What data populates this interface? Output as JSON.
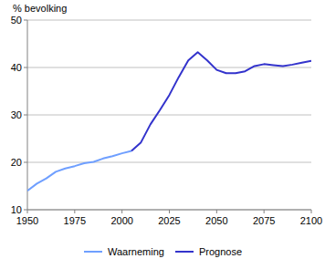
{
  "chart_data": {
    "type": "line",
    "y_label": "% bevolking",
    "x": [
      1950,
      1955,
      1960,
      1965,
      1970,
      1975,
      1980,
      1985,
      1990,
      1995,
      2000,
      2005,
      2010,
      2015,
      2020,
      2025,
      2030,
      2035,
      2040,
      2045,
      2050,
      2055,
      2060,
      2065,
      2070,
      2075,
      2080,
      2085,
      2090,
      2095,
      2100
    ],
    "series": [
      {
        "name": "Waarneming",
        "color": "#6f9fff",
        "values": [
          14,
          15.5,
          16.6,
          18,
          18.7,
          19.2,
          19.8,
          20.1,
          20.8,
          21.3,
          21.9,
          22.4,
          null,
          null,
          null,
          null,
          null,
          null,
          null,
          null,
          null,
          null,
          null,
          null,
          null,
          null,
          null,
          null,
          null,
          null,
          null
        ]
      },
      {
        "name": "Prognose",
        "color": "#3333cc",
        "values": [
          null,
          null,
          null,
          null,
          null,
          null,
          null,
          null,
          null,
          null,
          null,
          22.4,
          24.2,
          28,
          31,
          34.2,
          38,
          41.5,
          43.2,
          41.5,
          39.5,
          38.8,
          38.8,
          39.2,
          40.3,
          40.7,
          40.5,
          40.3,
          40.6,
          41,
          41.4
        ]
      }
    ],
    "xlim": [
      1950,
      2100
    ],
    "ylim": [
      10,
      50
    ],
    "xticks": [
      1950,
      1975,
      2000,
      2025,
      2050,
      2075,
      2100
    ],
    "yticks": [
      10,
      20,
      30,
      40,
      50
    ],
    "grid": true,
    "legend": "bottom"
  }
}
